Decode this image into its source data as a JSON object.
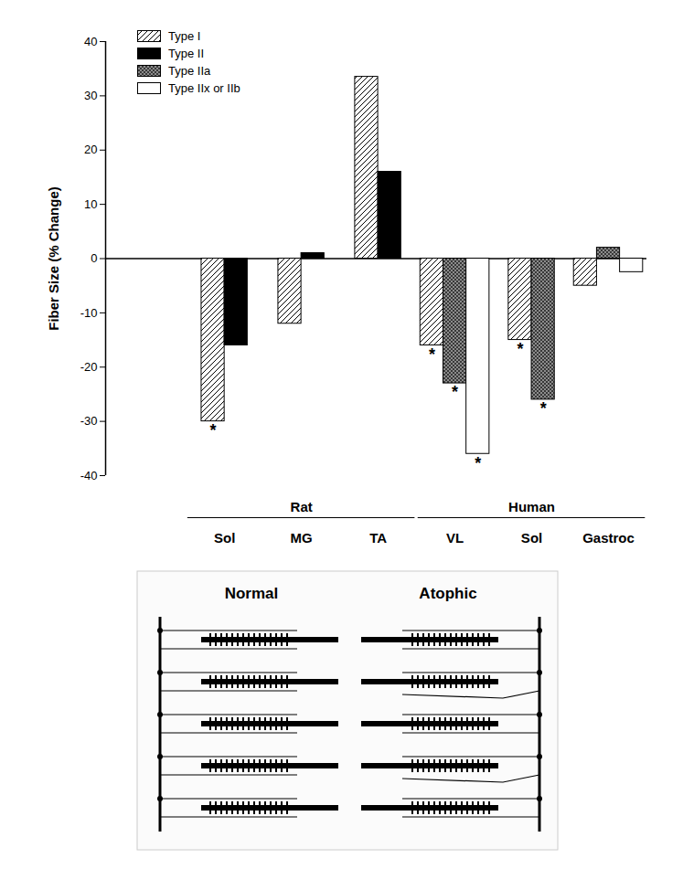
{
  "chart_data": {
    "type": "bar",
    "ylabel": "Fiber Size (% Change)",
    "categories": [
      "Sol",
      "MG",
      "TA",
      "VL",
      "Sol",
      "Gastroc"
    ],
    "groups": [
      {
        "name": "Rat",
        "categories": [
          0,
          1,
          2
        ]
      },
      {
        "name": "Human",
        "categories": [
          3,
          4,
          5
        ]
      }
    ],
    "series": [
      {
        "name": "Type I",
        "color": "#ffffff",
        "values": [
          -30,
          -12,
          33.5,
          -16,
          -15,
          -5
        ],
        "annotations": [
          "*",
          null,
          null,
          "*",
          "*",
          null
        ]
      },
      {
        "name": "Type II",
        "color": "#000000",
        "values": [
          -16,
          1,
          16,
          null,
          null,
          null
        ],
        "annotations": [
          null,
          null,
          null,
          null,
          null,
          null
        ]
      },
      {
        "name": "Type IIa",
        "color": "#8c8c8c",
        "values": [
          null,
          null,
          null,
          -23,
          -26,
          2
        ],
        "annotations": [
          null,
          null,
          null,
          "*",
          "*",
          null
        ]
      },
      {
        "name": "Type IIx or IIb",
        "color": "#ffffff",
        "values": [
          null,
          null,
          null,
          -36,
          null,
          -2.5
        ],
        "annotations": [
          null,
          null,
          null,
          "*",
          null,
          null
        ]
      }
    ],
    "ylim": [
      -40,
      40
    ],
    "yticks": [
      -40,
      -30,
      -20,
      -10,
      0,
      10,
      20,
      30,
      40
    ],
    "legend": "top-left",
    "grid": false
  },
  "diagram": {
    "panels": [
      {
        "label": "Normal"
      },
      {
        "label": "Atophic"
      }
    ]
  }
}
